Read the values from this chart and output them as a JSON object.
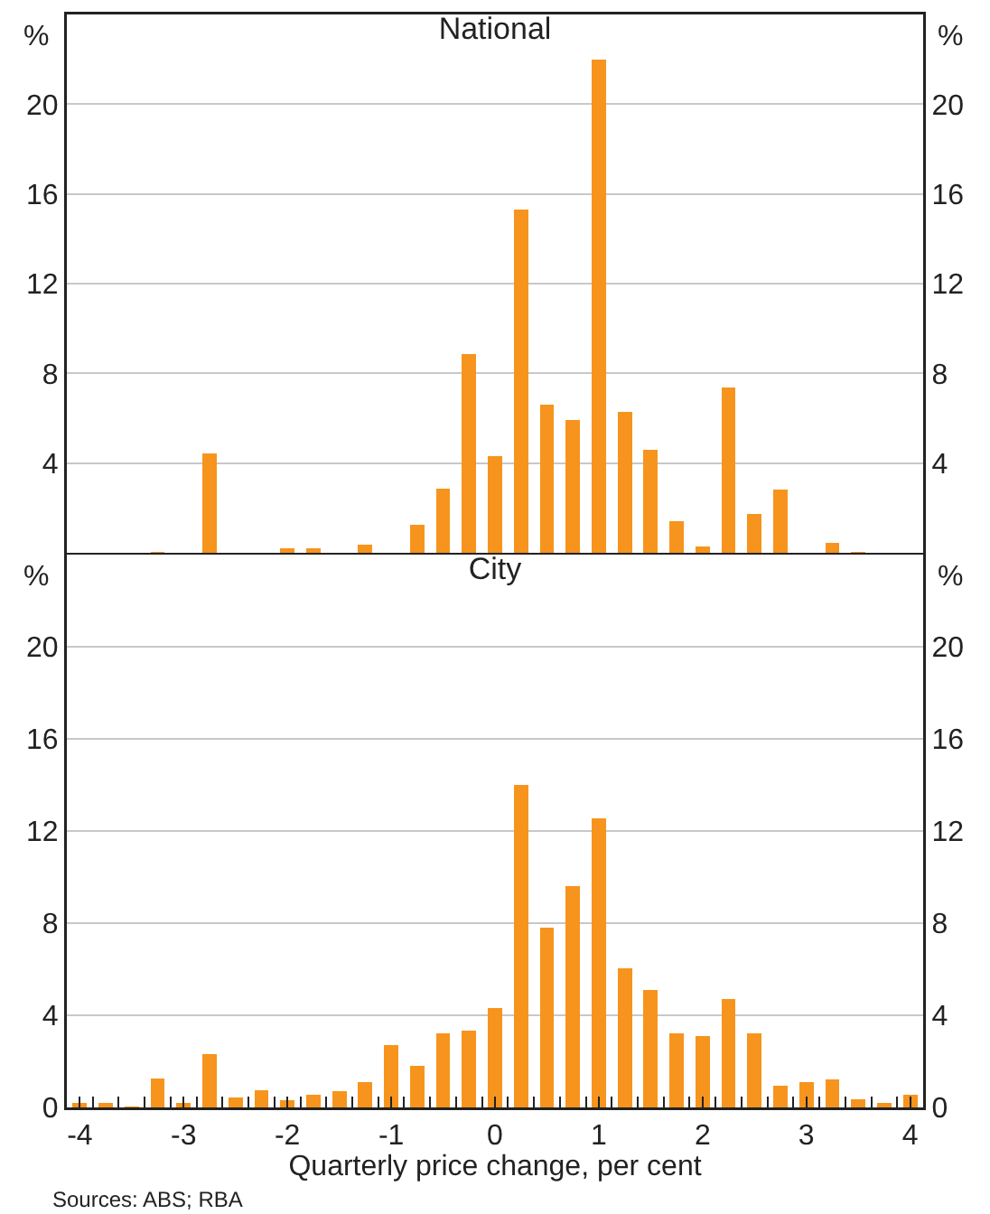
{
  "chart_data": [
    {
      "type": "histogram",
      "title": "National",
      "ylabel": "%",
      "y2label": "%",
      "color": "#f7941d",
      "bins": [
        -4.125,
        -3.875,
        -3.625,
        -3.375,
        -3.125,
        -2.875,
        -2.625,
        -2.375,
        -2.125,
        -1.875,
        -1.625,
        -1.375,
        -1.125,
        -0.875,
        -0.625,
        -0.375,
        -0.125,
        0.125,
        0.375,
        0.625,
        0.875,
        1.125,
        1.375,
        1.625,
        1.875,
        2.125,
        2.375,
        2.625,
        2.875,
        3.125,
        3.375,
        3.625,
        3.875,
        4.125
      ],
      "values": [
        0,
        0,
        0,
        0.05,
        0,
        4.45,
        0,
        0,
        0.2,
        0.2,
        0,
        0.35,
        0,
        1.25,
        2.85,
        8.85,
        4.3,
        15.3,
        6.6,
        5.9,
        22.0,
        6.3,
        4.6,
        1.4,
        0.3,
        7.35,
        1.75,
        2.8,
        0,
        0.45,
        0.05,
        0,
        0
      ],
      "xlim": [
        -4.125,
        4.125
      ],
      "ylim": [
        0,
        24
      ],
      "yticks": [
        4,
        8,
        12,
        16,
        20
      ],
      "y2lim": [
        0,
        24
      ],
      "y2ticks": [
        4,
        8,
        12,
        16,
        20
      ],
      "grid": "y",
      "tick_labels": "y"
    },
    {
      "type": "histogram",
      "title": "City",
      "ylabel": "%",
      "y2label": "%",
      "xlabel": "Quarterly price change, per cent",
      "color": "#f7941d",
      "bins": [
        -4.125,
        -3.875,
        -3.625,
        -3.375,
        -3.125,
        -2.875,
        -2.625,
        -2.375,
        -2.125,
        -1.875,
        -1.625,
        -1.375,
        -1.125,
        -0.875,
        -0.625,
        -0.375,
        -0.125,
        0.125,
        0.375,
        0.625,
        0.875,
        1.125,
        1.375,
        1.625,
        1.875,
        2.125,
        2.375,
        2.625,
        2.875,
        3.125,
        3.375,
        3.625,
        3.875,
        4.125
      ],
      "values": [
        0.2,
        0.2,
        0.05,
        1.25,
        0.2,
        2.3,
        0.45,
        0.75,
        0.3,
        0.55,
        0.7,
        1.1,
        2.7,
        1.8,
        3.2,
        3.35,
        4.3,
        14.0,
        7.8,
        9.6,
        12.55,
        6.05,
        5.1,
        3.2,
        3.1,
        4.7,
        3.2,
        0.95,
        1.1,
        1.2,
        0.35,
        0.2,
        0.55
      ],
      "xlim": [
        -4.125,
        4.125
      ],
      "xticks": [
        -4,
        -3,
        -2,
        -1,
        0,
        1,
        2,
        3,
        4
      ],
      "ylim": [
        0,
        24
      ],
      "yticks": [
        0,
        4,
        8,
        12,
        16,
        20
      ],
      "y2lim": [
        0,
        24
      ],
      "y2ticks": [
        0,
        4,
        8,
        12,
        16,
        20
      ],
      "grid": "y",
      "annotations": [
        "Sources: ABS; RBA"
      ]
    }
  ]
}
